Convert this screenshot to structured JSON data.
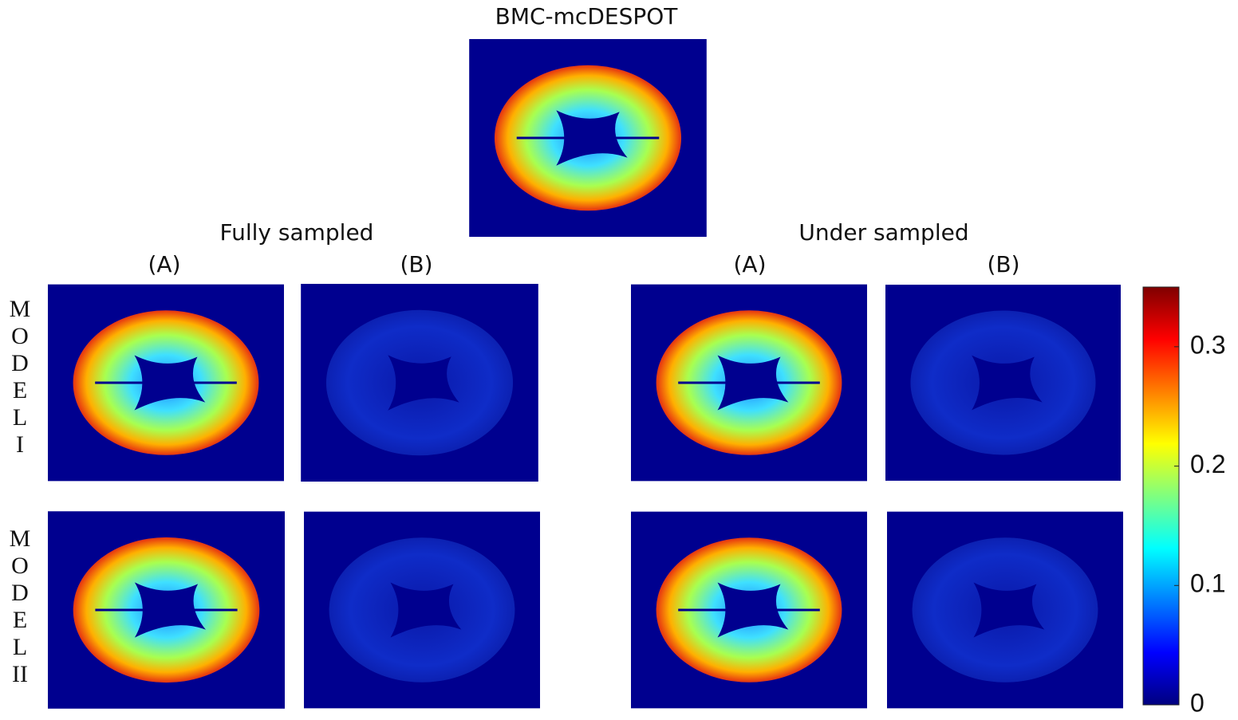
{
  "title": "BMC-mcDESPOT",
  "groups": [
    {
      "label": "Fully sampled",
      "columns": [
        "(A)",
        "(B)"
      ]
    },
    {
      "label": "Under sampled",
      "columns": [
        "(A)",
        "(B)"
      ]
    }
  ],
  "rows": [
    {
      "letters": [
        "M",
        "O",
        "D",
        "E",
        "L",
        "I"
      ]
    },
    {
      "letters": [
        "M",
        "O",
        "D",
        "E",
        "L",
        "II"
      ]
    }
  ],
  "colorbar": {
    "ylim": [
      0,
      0.35
    ],
    "ticks": [
      0,
      0.1,
      0.2,
      0.3
    ]
  }
}
